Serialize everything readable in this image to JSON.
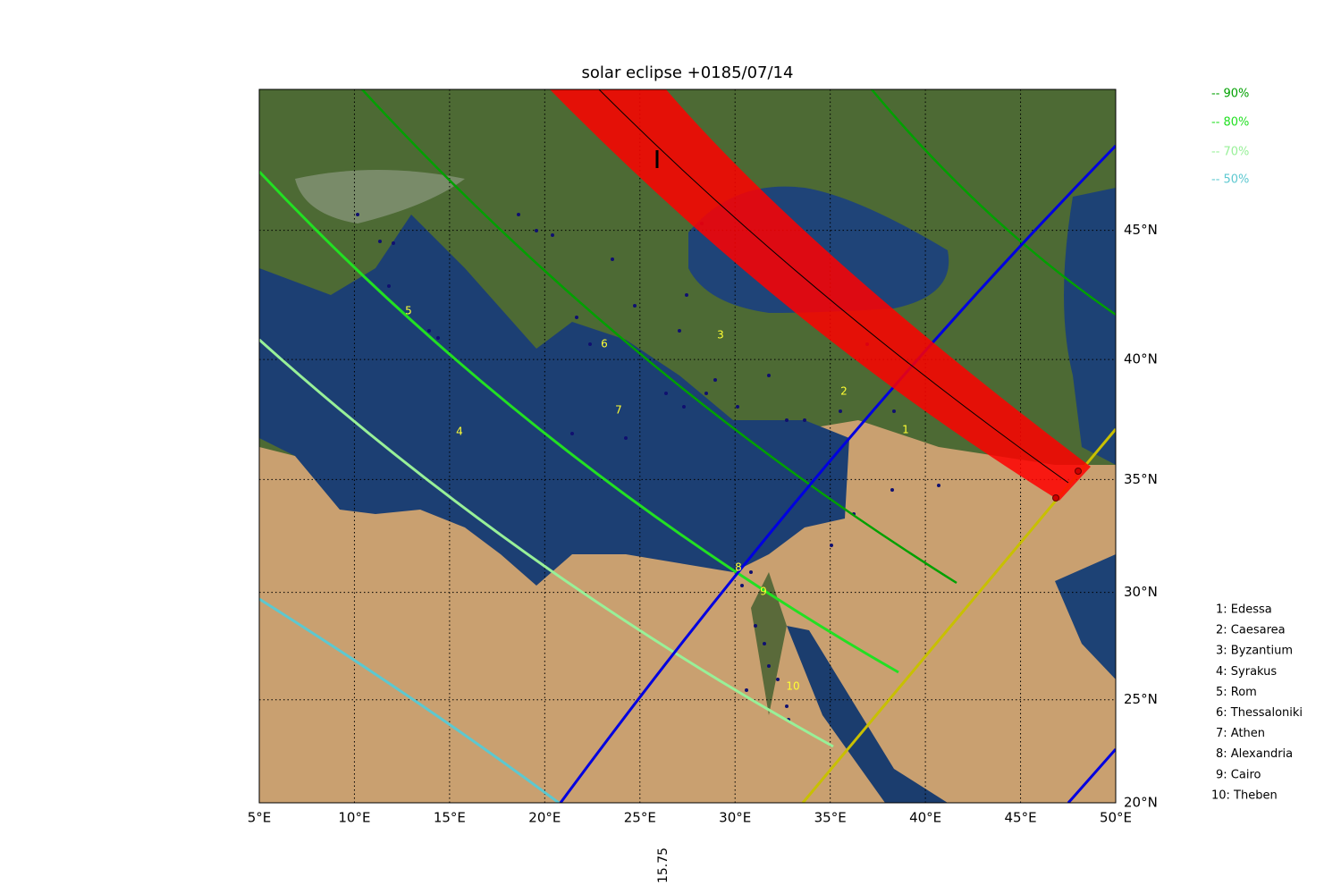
{
  "title": "solar eclipse +0185/07/14",
  "x_ticks": [
    {
      "value": 5,
      "label": "5°E"
    },
    {
      "value": 10,
      "label": "10°E"
    },
    {
      "value": 15,
      "label": "15°E"
    },
    {
      "value": 20,
      "label": "20°E"
    },
    {
      "value": 25,
      "label": "25°E"
    },
    {
      "value": 30,
      "label": "30°E"
    },
    {
      "value": 35,
      "label": "35°E"
    },
    {
      "value": 40,
      "label": "40°E"
    },
    {
      "value": 45,
      "label": "45°E"
    },
    {
      "value": 50,
      "label": "50°E"
    }
  ],
  "y_ticks": [
    {
      "value": 20,
      "label": "20°N"
    },
    {
      "value": 25,
      "label": "25°N"
    },
    {
      "value": 30,
      "label": "30°N"
    },
    {
      "value": 35,
      "label": "35°N"
    },
    {
      "value": 40,
      "label": "40°N"
    },
    {
      "value": 45,
      "label": "45°N"
    }
  ],
  "legend": [
    {
      "label": "-- 90%",
      "color": "#00a000"
    },
    {
      "label": "-- 80%",
      "color": "#22e022"
    },
    {
      "label": "-- 70%",
      "color": "#98f098"
    },
    {
      "label": "-- 50%",
      "color": "#5cc8d0"
    }
  ],
  "map_labels": [
    "1",
    "2",
    "3",
    "4",
    "5",
    "6",
    "7",
    "8",
    "9",
    "10"
  ],
  "cities": [
    "1: Edessa",
    "2: Caesarea",
    "3: Byzantium",
    "4: Syrakus",
    "5: Rom",
    "6: Thessaloniki",
    "7: Athen",
    "8: Alexandria",
    "9: Cairo",
    "10: Theben"
  ],
  "side_note": "15.75"
}
